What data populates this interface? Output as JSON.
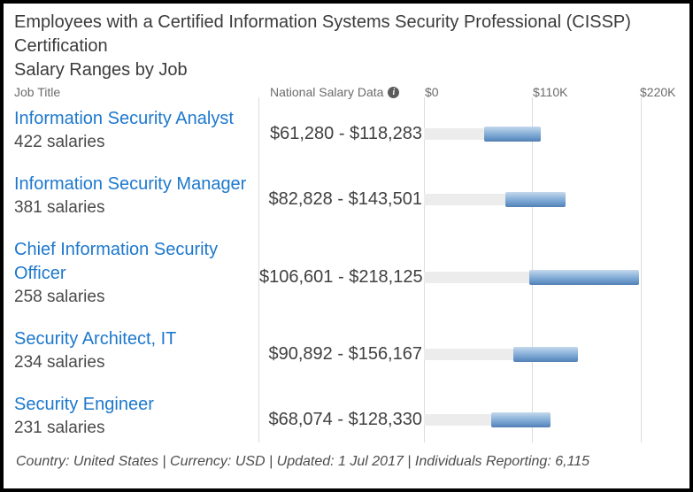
{
  "header": {
    "title": "Employees with a Certified Information Systems Security Professional (CISSP) Certification",
    "subtitle": "Salary Ranges by Job"
  },
  "columns": {
    "job_title": "Job Title",
    "national_salary_data": "National Salary Data",
    "info_icon_glyph": "i"
  },
  "chart_data": {
    "type": "bar",
    "title": "Salary Ranges by Job",
    "axis": {
      "min": 0,
      "max": 220000,
      "ticks": [
        {
          "label": "$0",
          "value": 0
        },
        {
          "label": "$110K",
          "value": 110000
        },
        {
          "label": "$220K",
          "value": 220000
        }
      ]
    },
    "rows": [
      {
        "job_title": "Information Security Analyst",
        "salaries": "422 salaries",
        "range_label": "$61,280 - $118,283",
        "min": 61280,
        "max": 118283
      },
      {
        "job_title": "Information Security Manager",
        "salaries": "381 salaries",
        "range_label": "$82,828 - $143,501",
        "min": 82828,
        "max": 143501
      },
      {
        "job_title": "Chief Information Security Officer",
        "salaries": "258 salaries",
        "range_label": "$106,601 - $218,125",
        "min": 106601,
        "max": 218125
      },
      {
        "job_title": "Security Architect, IT",
        "salaries": "234 salaries",
        "range_label": "$90,892 - $156,167",
        "min": 90892,
        "max": 156167
      },
      {
        "job_title": "Security Engineer",
        "salaries": "231 salaries",
        "range_label": "$68,074 - $128,330",
        "min": 68074,
        "max": 128330
      }
    ],
    "colors": {
      "bar_top": "#c6d9ec",
      "bar_bottom": "#517fb4",
      "track": "#ececec",
      "link_blue": "#1d78cd"
    }
  },
  "footer": {
    "text": "Country: United States | Currency: USD | Updated: 1 Jul 2017 | Individuals Reporting: 6,115"
  }
}
